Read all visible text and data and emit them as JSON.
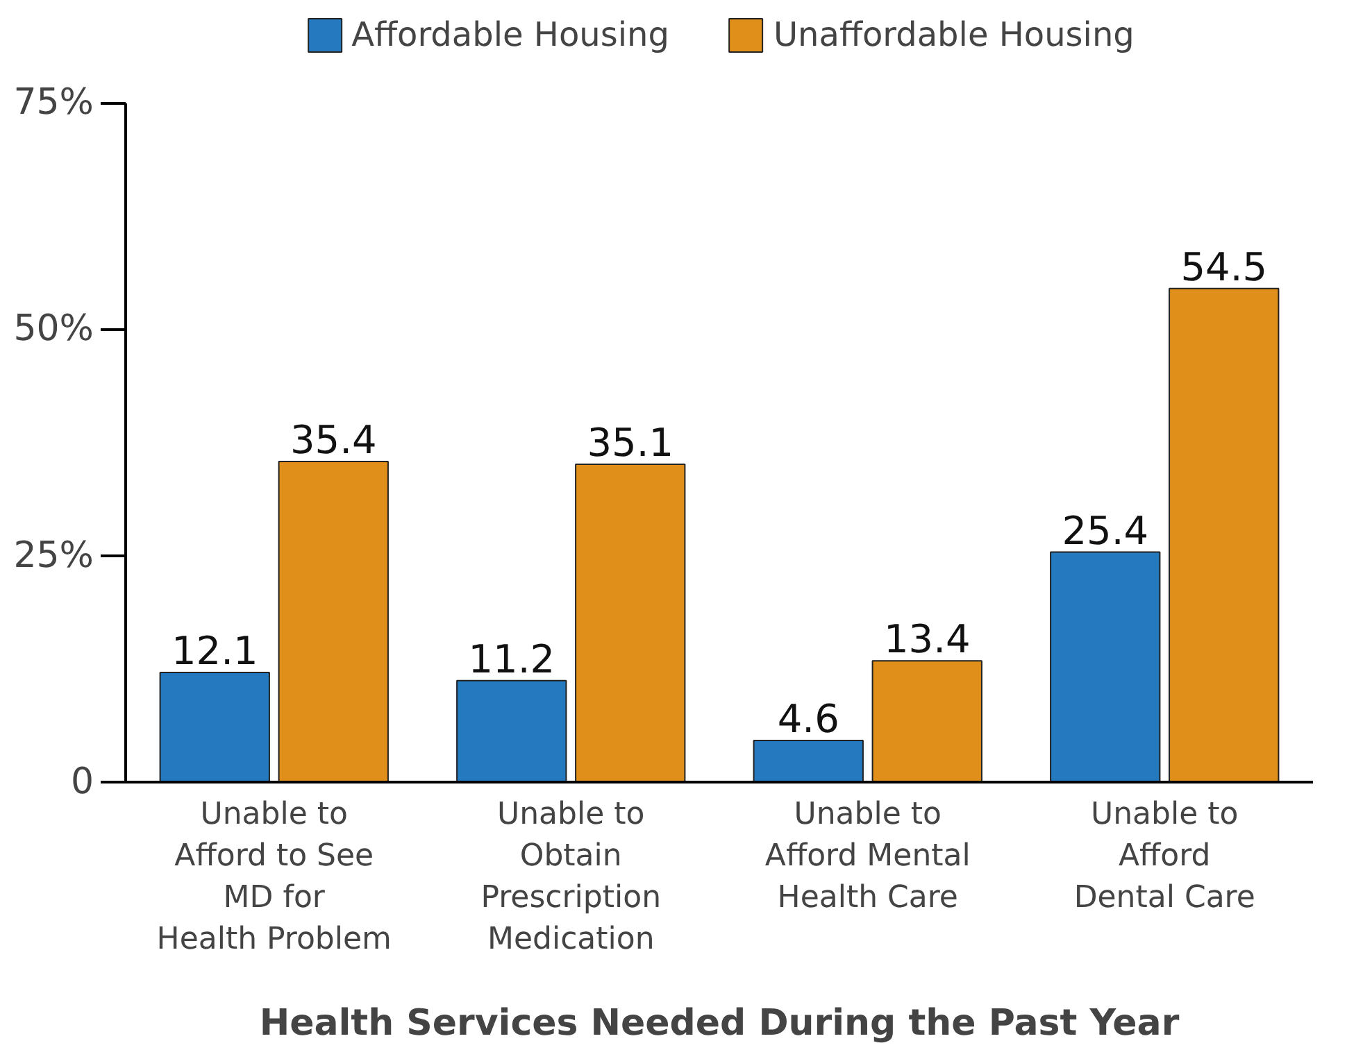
{
  "chart_data": {
    "type": "bar",
    "xlabel": "Health Services Needed During the Past Year",
    "categories": [
      "Unable to\nAfford to See\nMD for\nHealth Problem",
      "Unable to\nObtain\nPrescription\nMedication",
      "Unable to\nAfford Mental\nHealth Care",
      "Unable to\nAfford\nDental Care"
    ],
    "series": [
      {
        "name": "Affordable Housing",
        "color": "#2479bf",
        "values": [
          12.1,
          11.2,
          4.6,
          25.4
        ]
      },
      {
        "name": "Unaffordable Housing",
        "color": "#e08f1b",
        "values": [
          35.4,
          35.1,
          13.4,
          54.5
        ]
      }
    ],
    "ylim": [
      0,
      75
    ],
    "yticks": [
      {
        "value": 0,
        "label": "0"
      },
      {
        "value": 25,
        "label": "25%"
      },
      {
        "value": 50,
        "label": "50%"
      },
      {
        "value": 75,
        "label": "75%"
      }
    ],
    "data_labels": true,
    "grid": false,
    "legend": "top"
  }
}
